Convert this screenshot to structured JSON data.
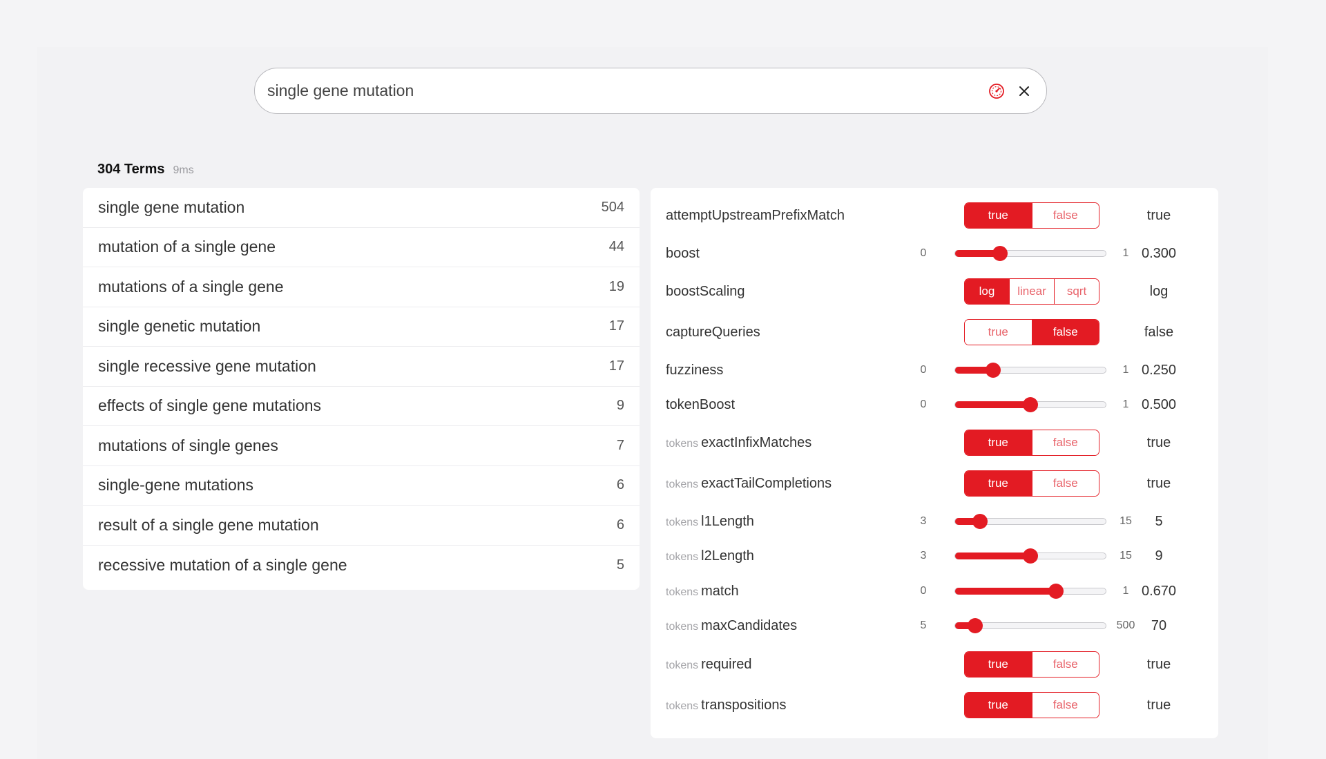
{
  "search": {
    "value": "single gene mutation"
  },
  "summary": {
    "count_label": "304 Terms",
    "time": "9ms"
  },
  "results": [
    {
      "term": "single gene mutation",
      "count": "504"
    },
    {
      "term": "mutation of a single gene",
      "count": "44"
    },
    {
      "term": "mutations of a single gene",
      "count": "19"
    },
    {
      "term": "single genetic mutation",
      "count": "17"
    },
    {
      "term": "single recessive gene mutation",
      "count": "17"
    },
    {
      "term": "effects of single gene mutations",
      "count": "9"
    },
    {
      "term": "mutations of single genes",
      "count": "7"
    },
    {
      "term": "single-gene mutations",
      "count": "6"
    },
    {
      "term": "result of a single gene mutation",
      "count": "6"
    },
    {
      "term": "recessive mutation of a single gene",
      "count": "5"
    }
  ],
  "settings": [
    {
      "prefix": "",
      "name": "attemptUpstreamPrefixMatch",
      "type": "toggle",
      "options": [
        "true",
        "false"
      ],
      "selected": 0,
      "value": "true"
    },
    {
      "prefix": "",
      "name": "boost",
      "type": "slider",
      "min": "0",
      "max": "1",
      "fraction": 0.3,
      "value": "0.300"
    },
    {
      "prefix": "",
      "name": "boostScaling",
      "type": "toggle",
      "options": [
        "log",
        "linear",
        "sqrt"
      ],
      "selected": 0,
      "value": "log"
    },
    {
      "prefix": "",
      "name": "captureQueries",
      "type": "toggle",
      "options": [
        "true",
        "false"
      ],
      "selected": 1,
      "value": "false"
    },
    {
      "prefix": "",
      "name": "fuzziness",
      "type": "slider",
      "min": "0",
      "max": "1",
      "fraction": 0.25,
      "value": "0.250"
    },
    {
      "prefix": "",
      "name": "tokenBoost",
      "type": "slider",
      "min": "0",
      "max": "1",
      "fraction": 0.5,
      "value": "0.500"
    },
    {
      "prefix": "tokens",
      "name": "exactInfixMatches",
      "type": "toggle",
      "options": [
        "true",
        "false"
      ],
      "selected": 0,
      "value": "true"
    },
    {
      "prefix": "tokens",
      "name": "exactTailCompletions",
      "type": "toggle",
      "options": [
        "true",
        "false"
      ],
      "selected": 0,
      "value": "true"
    },
    {
      "prefix": "tokens",
      "name": "l1Length",
      "type": "slider",
      "min": "3",
      "max": "15",
      "fraction": 0.1667,
      "value": "5"
    },
    {
      "prefix": "tokens",
      "name": "l2Length",
      "type": "slider",
      "min": "3",
      "max": "15",
      "fraction": 0.5,
      "value": "9"
    },
    {
      "prefix": "tokens",
      "name": "match",
      "type": "slider",
      "min": "0",
      "max": "1",
      "fraction": 0.67,
      "value": "0.670"
    },
    {
      "prefix": "tokens",
      "name": "maxCandidates",
      "type": "slider",
      "min": "5",
      "max": "500",
      "fraction": 0.131,
      "value": "70"
    },
    {
      "prefix": "tokens",
      "name": "required",
      "type": "toggle",
      "options": [
        "true",
        "false"
      ],
      "selected": 0,
      "value": "true"
    },
    {
      "prefix": "tokens",
      "name": "transpositions",
      "type": "toggle",
      "options": [
        "true",
        "false"
      ],
      "selected": 0,
      "value": "true"
    }
  ],
  "colors": {
    "accent": "#e31b23"
  },
  "icons": {
    "search_action": "speedometer-icon",
    "clear": "close-icon"
  }
}
